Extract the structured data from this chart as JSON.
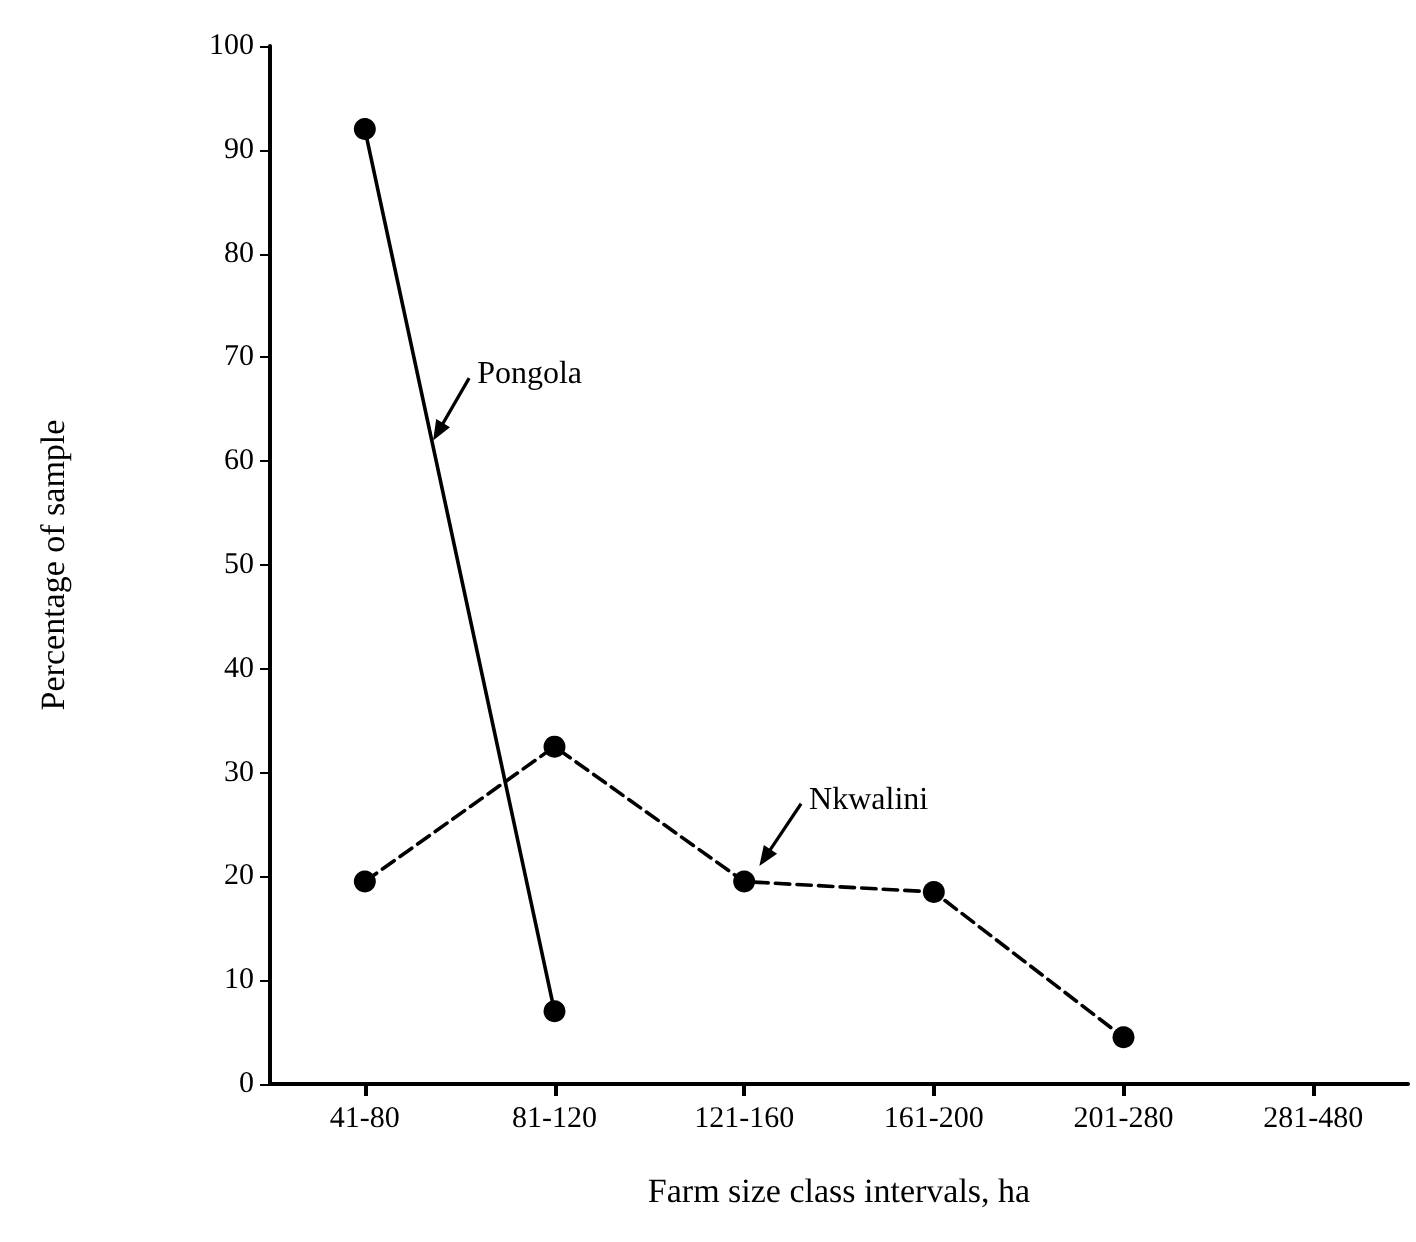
{
  "chart_data": {
    "type": "line",
    "xlabel": "Farm size class intervals, ha",
    "ylabel": "Percentage of sample",
    "categories": [
      "41-80",
      "81-120",
      "121-160",
      "161-200",
      "201-280",
      "281-480"
    ],
    "series": [
      {
        "name": "Pongola",
        "color": "#000000",
        "line_style": "solid",
        "values": [
          92,
          7,
          null,
          null,
          null,
          null
        ]
      },
      {
        "name": "Nkwalini",
        "color": "#000000",
        "line_style": "dashed",
        "values": [
          19.5,
          32.5,
          19.5,
          18.5,
          4.5,
          null
        ]
      }
    ],
    "ylim": [
      0,
      100
    ],
    "yticks": [
      0,
      10,
      20,
      30,
      40,
      50,
      60,
      70,
      80,
      90,
      100
    ],
    "grid": false,
    "legend": false,
    "marker": "circle"
  }
}
